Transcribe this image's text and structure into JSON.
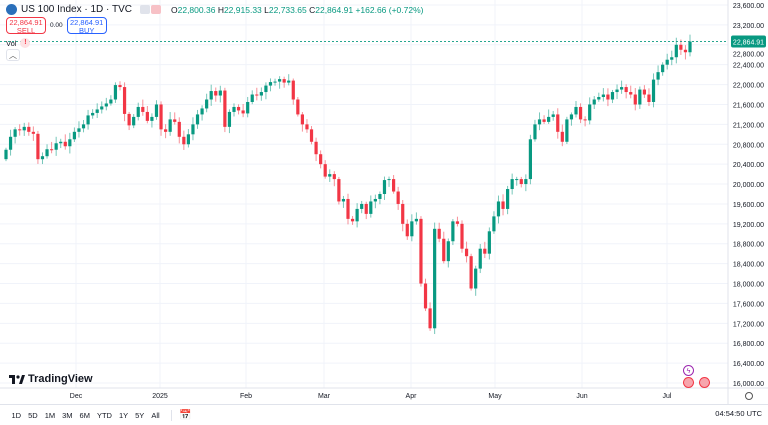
{
  "header": {
    "title": "US 100 Index · 1D · TVC",
    "ohlc": {
      "o_label": "O",
      "o": "22,800.36",
      "h_label": "H",
      "h": "22,915.33",
      "l_label": "L",
      "l": "22,733.65",
      "c_label": "C",
      "c": "22,864.91",
      "change": "+162.66 (+0.72%)"
    }
  },
  "trade": {
    "sell_price": "22,864.91",
    "sell_label": "SELL",
    "spread": "0.00",
    "buy_price": "22,864.91",
    "buy_label": "BUY"
  },
  "volume": {
    "label": "Vol",
    "warning": "!"
  },
  "branding": {
    "name": "TradingView"
  },
  "price_axis": {
    "ticks": [
      "23,600.00",
      "23,200.00",
      "22,800.00",
      "22,400.00",
      "22,000.00",
      "21,600.00",
      "21,200.00",
      "20,800.00",
      "20,400.00",
      "20,000.00",
      "19,600.00",
      "19,200.00",
      "18,800.00",
      "18,400.00",
      "18,000.00",
      "17,600.00",
      "17,200.00",
      "16,800.00",
      "16,400.00",
      "16,000.00"
    ],
    "current": "22,864.91"
  },
  "time_axis": {
    "labels": [
      "Dec",
      "2025",
      "Feb",
      "Mar",
      "Apr",
      "May",
      "Jun",
      "Jul"
    ]
  },
  "toolbar": {
    "ranges": [
      "1D",
      "5D",
      "1M",
      "3M",
      "6M",
      "YTD",
      "1Y",
      "5Y",
      "All"
    ],
    "clock": "04:54:50 UTC"
  },
  "colors": {
    "up": "#089981",
    "down": "#f23645",
    "grid": "#f0f3fa"
  },
  "chart_data": {
    "type": "candlestick",
    "ylim": [
      16000,
      23600
    ],
    "first_open": 20500,
    "closes": [
      20690,
      20950,
      21100,
      21080,
      21150,
      21050,
      21010,
      20500,
      20560,
      20700,
      20690,
      20820,
      20850,
      20760,
      20900,
      21050,
      21120,
      21200,
      21380,
      21430,
      21500,
      21560,
      21620,
      21700,
      21990,
      21950,
      21410,
      21180,
      21350,
      21550,
      21450,
      21270,
      21350,
      21600,
      21100,
      21050,
      21300,
      21250,
      20950,
      20800,
      21000,
      21200,
      21400,
      21520,
      21700,
      21870,
      21780,
      21880,
      21150,
      21450,
      21550,
      21480,
      21420,
      21650,
      21800,
      21780,
      21850,
      21980,
      22050,
      22060,
      22110,
      22040,
      22080,
      21700,
      21400,
      21200,
      21100,
      20850,
      20600,
      20400,
      20150,
      20200,
      20100,
      19650,
      19700,
      19300,
      19250,
      19500,
      19600,
      19400,
      19650,
      19700,
      19800,
      20080,
      20100,
      19850,
      19600,
      19200,
      18950,
      19250,
      19300,
      18000,
      17500,
      17100,
      19100,
      18900,
      18450,
      18850,
      19250,
      19200,
      18700,
      18550,
      17900,
      18300,
      18700,
      18600,
      19050,
      19350,
      19650,
      19500,
      19900,
      20100,
      20100,
      20000,
      20100,
      20900,
      21200,
      21300,
      21250,
      21350,
      21400,
      21050,
      20850,
      21300,
      21400,
      21550,
      21300,
      21280,
      21600,
      21700,
      21750,
      21800,
      21700,
      21850,
      21900,
      21950,
      21850,
      21800,
      21600,
      21900,
      21800,
      21650,
      22100,
      22250,
      22400,
      22500,
      22550,
      22800,
      22700,
      22650,
      22864.91
    ]
  }
}
